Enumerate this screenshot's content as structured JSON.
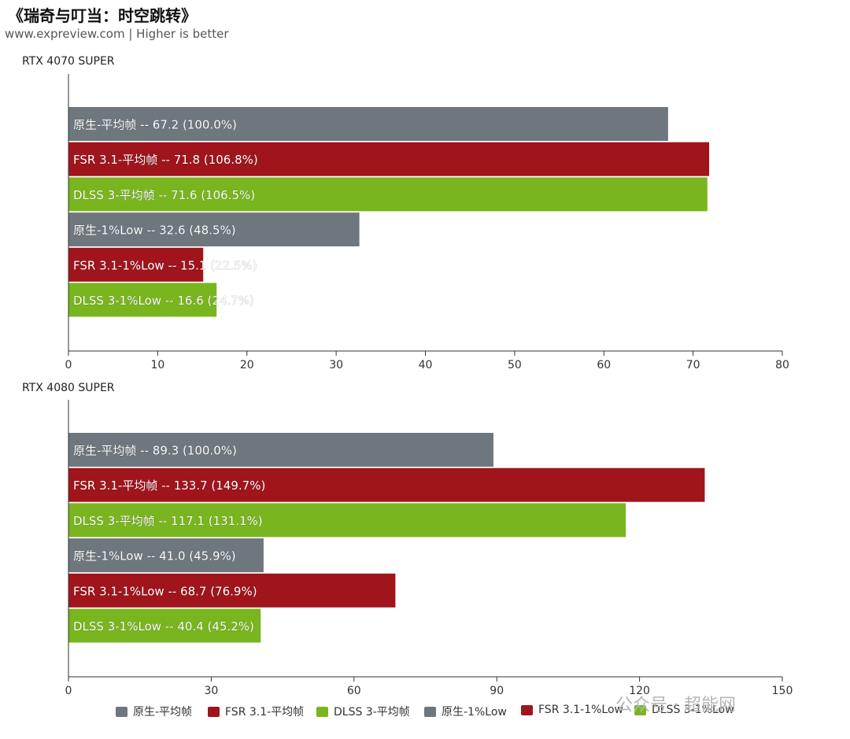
{
  "header": {
    "title": "《瑞奇与叮当：时空跳转》",
    "subtitle": "www.expreview.com | Higher is better"
  },
  "watermark": "公众号 · 超能网",
  "colors": {
    "native": "#6e777d",
    "fsr": "#a0141c",
    "dlss": "#79b51e",
    "axis": "#333333"
  },
  "chart_data": [
    {
      "type": "bar",
      "orientation": "horizontal",
      "title": "RTX 4070 SUPER",
      "xlim": [
        0,
        80
      ],
      "xticks": [
        0,
        10,
        20,
        30,
        40,
        50,
        60,
        70,
        80
      ],
      "bars": [
        {
          "label": "原生-平均帧  --  67.2 (100.0%)",
          "value": 67.2,
          "group": "native"
        },
        {
          "label": "FSR 3.1-平均帧  --  71.8 (106.8%)",
          "value": 71.8,
          "group": "fsr"
        },
        {
          "label": "DLSS 3-平均帧  --  71.6 (106.5%)",
          "value": 71.6,
          "group": "dlss"
        },
        {
          "label": "原生-1%Low  --  32.6 (48.5%)",
          "value": 32.6,
          "group": "native"
        },
        {
          "label": "FSR 3.1-1%Low  --  15.1 (22.5%)",
          "value": 15.1,
          "group": "fsr"
        },
        {
          "label": "DLSS 3-1%Low  --  16.6 (24.7%)",
          "value": 16.6,
          "group": "dlss"
        }
      ]
    },
    {
      "type": "bar",
      "orientation": "horizontal",
      "title": "RTX 4080 SUPER",
      "xlim": [
        0,
        150
      ],
      "xticks": [
        0,
        30,
        60,
        90,
        120,
        150
      ],
      "bars": [
        {
          "label": "原生-平均帧  --  89.3 (100.0%)",
          "value": 89.3,
          "group": "native"
        },
        {
          "label": "FSR 3.1-平均帧  --  133.7 (149.7%)",
          "value": 133.7,
          "group": "fsr"
        },
        {
          "label": "DLSS 3-平均帧  --  117.1 (131.1%)",
          "value": 117.1,
          "group": "dlss"
        },
        {
          "label": "原生-1%Low  --  41.0 (45.9%)",
          "value": 41.0,
          "group": "native"
        },
        {
          "label": "FSR 3.1-1%Low  --  68.7 (76.9%)",
          "value": 68.7,
          "group": "fsr"
        },
        {
          "label": "DLSS 3-1%Low  --  40.4 (45.2%)",
          "value": 40.4,
          "group": "dlss"
        }
      ]
    }
  ],
  "legend": [
    {
      "label": "原生-平均帧",
      "group": "native"
    },
    {
      "label": "FSR 3.1-平均帧",
      "group": "fsr"
    },
    {
      "label": "DLSS 3-平均帧",
      "group": "dlss"
    },
    {
      "label": "原生-1%Low",
      "group": "native"
    },
    {
      "label": "FSR 3.1-1%Low",
      "group": "fsr"
    },
    {
      "label": "DLSS 3-1%Low",
      "group": "dlss"
    }
  ]
}
